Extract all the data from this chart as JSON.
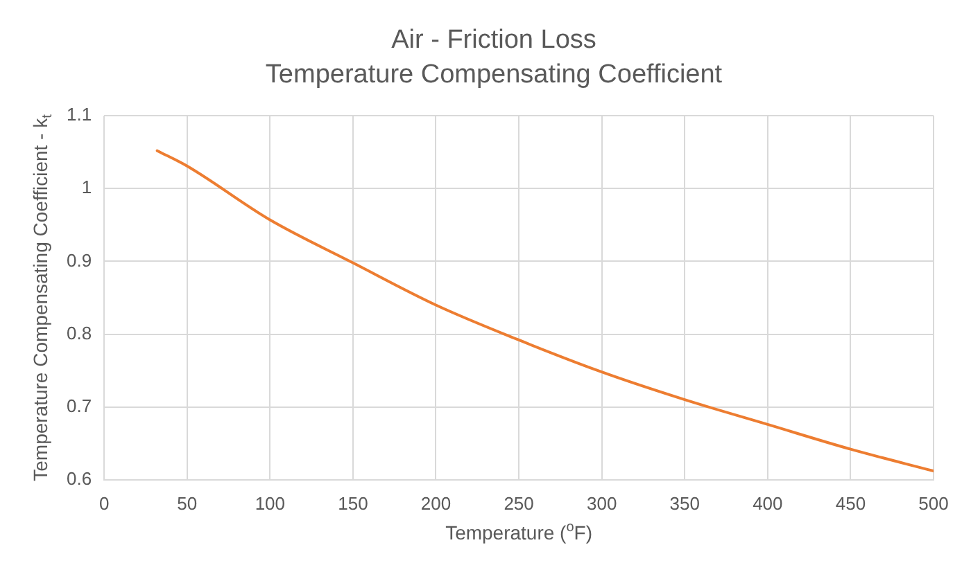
{
  "chart_data": {
    "type": "line",
    "title": "Air - Friction Loss",
    "subtitle": "Temperature Compensating Coefficient",
    "xlabel": "Temperature ($^{o}$F)",
    "ylabel": "Temperature Compensating Coefficient - k$_{t}$",
    "x": [
      32,
      50,
      100,
      150,
      200,
      250,
      300,
      350,
      400,
      450,
      500
    ],
    "series": [
      {
        "color": "#ed7d31",
        "values": [
          1.052,
          1.031,
          0.957,
          0.898,
          0.84,
          0.792,
          0.748,
          0.71,
          0.676,
          0.642,
          0.612
        ]
      }
    ],
    "xlim": [
      0,
      500
    ],
    "xticks": [
      0,
      50,
      100,
      150,
      200,
      250,
      300,
      350,
      400,
      450,
      500
    ],
    "ylim": [
      0.6,
      1.1
    ],
    "yticks": [
      0.6,
      0.7,
      0.8,
      0.9,
      1,
      1.1
    ],
    "grid": true,
    "legend": false,
    "marker": "none",
    "line_style": "solid"
  }
}
